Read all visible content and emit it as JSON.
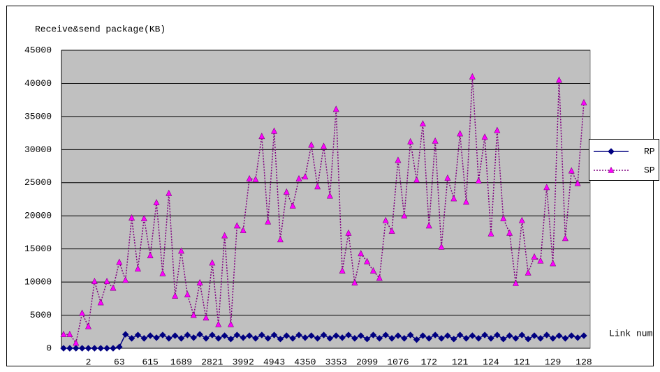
{
  "chart_data": {
    "type": "line",
    "title": "Receive&send  package(KB)",
    "x_label": "Link num",
    "categories": [
      null,
      null,
      null,
      null,
      "2",
      null,
      null,
      null,
      null,
      "63",
      null,
      null,
      null,
      null,
      "615",
      null,
      null,
      null,
      null,
      "1689",
      null,
      null,
      null,
      null,
      "2821",
      null,
      null,
      null,
      null,
      "3992",
      null,
      null,
      null,
      null,
      "4943",
      null,
      null,
      null,
      null,
      "4350",
      null,
      null,
      null,
      null,
      "3353",
      null,
      null,
      null,
      null,
      "2099",
      null,
      null,
      null,
      null,
      "1076",
      null,
      null,
      null,
      null,
      "172",
      null,
      null,
      null,
      null,
      "121",
      null,
      null,
      null,
      null,
      "124",
      null,
      null,
      null,
      null,
      "121",
      null,
      null,
      null,
      null,
      "129",
      null,
      null,
      null,
      null,
      "128"
    ],
    "series": [
      {
        "name": "RP",
        "color": "#000080",
        "marker": "diamond",
        "dashed": false,
        "values": [
          0,
          0,
          0,
          0,
          0,
          0,
          0,
          0,
          0,
          200,
          2100,
          1500,
          2000,
          1500,
          1900,
          1600,
          2000,
          1500,
          1900,
          1500,
          2000,
          1600,
          2100,
          1500,
          2000,
          1500,
          1900,
          1400,
          2000,
          1600,
          1900,
          1500,
          2000,
          1500,
          2000,
          1400,
          1900,
          1500,
          2000,
          1600,
          1900,
          1500,
          2000,
          1500,
          1900,
          1600,
          2000,
          1500,
          1900,
          1400,
          2000,
          1500,
          2000,
          1500,
          1900,
          1500,
          2000,
          1300,
          1900,
          1500,
          2000,
          1500,
          1900,
          1400,
          2000,
          1500,
          1900,
          1500,
          2000,
          1500,
          2000,
          1400,
          1900,
          1500,
          2000,
          1400,
          1900,
          1500,
          2000,
          1500,
          1900,
          1500,
          1900,
          1600,
          1900
        ]
      },
      {
        "name": "SP",
        "color": "#800080",
        "marker_color": "#ff00ff",
        "marker": "triangle",
        "dashed": true,
        "values": [
          2100,
          2100,
          800,
          5300,
          3300,
          10100,
          6900,
          10100,
          9100,
          13000,
          10300,
          19700,
          12000,
          19600,
          14000,
          22000,
          11300,
          23400,
          7900,
          14700,
          8100,
          5000,
          9900,
          4600,
          12900,
          3600,
          17000,
          3600,
          18500,
          17800,
          25600,
          25500,
          32000,
          19100,
          32800,
          16400,
          23600,
          21500,
          25600,
          25900,
          30700,
          24400,
          30500,
          23000,
          36100,
          11700,
          17400,
          9900,
          14300,
          13100,
          11700,
          10600,
          19300,
          17700,
          28400,
          20000,
          31200,
          25400,
          33900,
          18500,
          31300,
          15300,
          25700,
          22600,
          32400,
          22100,
          41000,
          25300,
          31900,
          17300,
          32900,
          19600,
          17400,
          9800,
          19300,
          11400,
          13800,
          13200,
          24300,
          12800,
          40500,
          16600,
          26800,
          24900,
          37100
        ]
      }
    ],
    "ylim": [
      0,
      45000
    ],
    "yticks": [
      0,
      5000,
      10000,
      15000,
      20000,
      25000,
      30000,
      35000,
      40000,
      45000
    ],
    "grid": true,
    "plot_background": "#c0c0c0",
    "legend": "right"
  }
}
